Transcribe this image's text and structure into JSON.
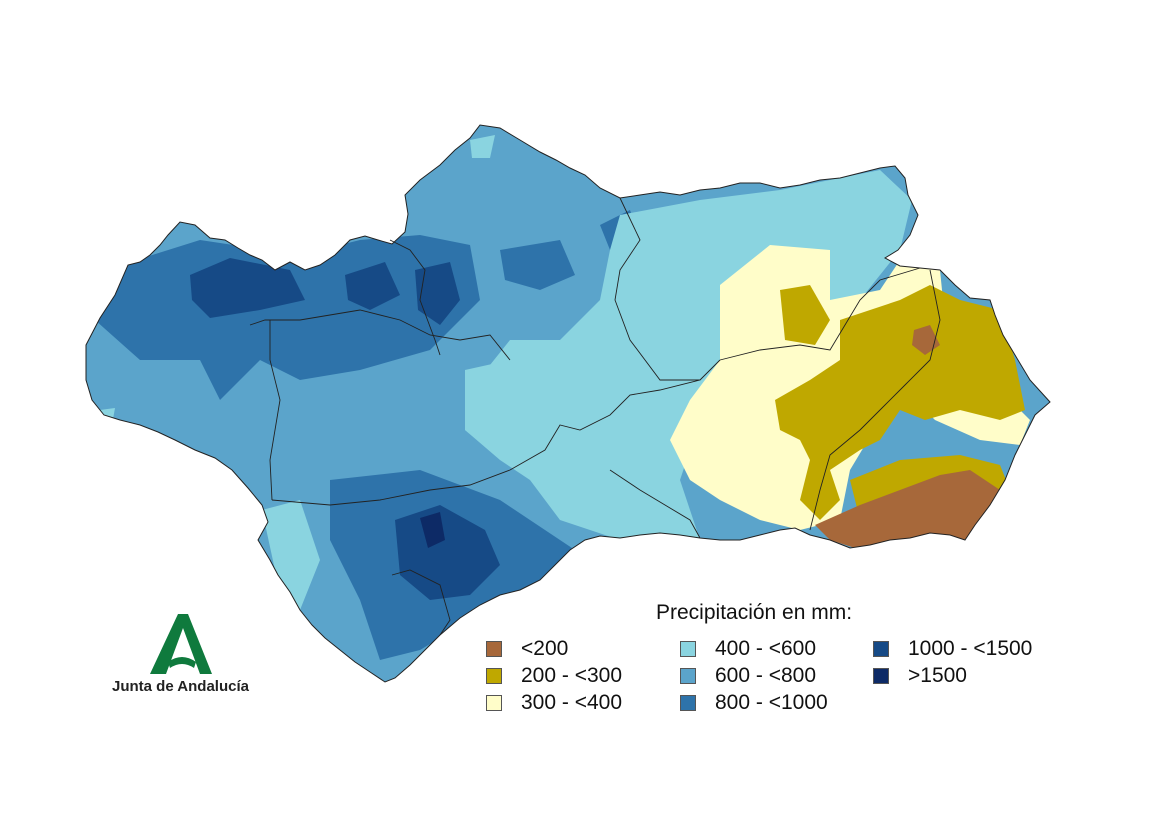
{
  "legend": {
    "title": "Precipitación en mm:",
    "items": [
      {
        "label": "<200",
        "color": "#a7683a"
      },
      {
        "label": "200 - <300",
        "color": "#bfa800"
      },
      {
        "label": "300 - <400",
        "color": "#fffdc9"
      },
      {
        "label": "400 - <600",
        "color": "#8ad4e0"
      },
      {
        "label": "600 - <800",
        "color": "#5ba4cb"
      },
      {
        "label": "800 - <1000",
        "color": "#2e73aa"
      },
      {
        "label": "1000 - <1500",
        "color": "#164a86"
      },
      {
        "label": ">1500",
        "color": "#0d2a66"
      }
    ]
  },
  "logo": {
    "text": "Junta de Andalucía",
    "color": "#0f7a3d",
    "icon": "andalucia-a-icon"
  }
}
